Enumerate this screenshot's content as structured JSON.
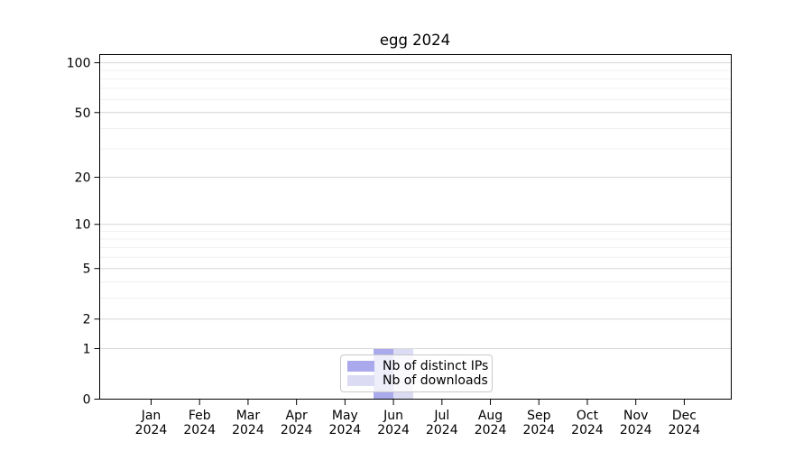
{
  "chart_data": {
    "type": "bar",
    "title": "egg 2024",
    "categories": [
      "Jan",
      "Feb",
      "Mar",
      "Apr",
      "May",
      "Jun",
      "Jul",
      "Aug",
      "Sep",
      "Oct",
      "Nov",
      "Dec"
    ],
    "category_sublabel": "2024",
    "series": [
      {
        "name": "Nb of distinct IPs",
        "color": "#a9a9ec",
        "values": [
          0,
          0,
          0,
          0,
          0,
          1,
          0,
          0,
          0,
          0,
          0,
          0
        ]
      },
      {
        "name": "Nb of downloads",
        "color": "#dbdbf4",
        "values": [
          0,
          0,
          0,
          0,
          0,
          1,
          0,
          0,
          0,
          0,
          0,
          0
        ]
      }
    ],
    "xlabel": "",
    "ylabel": "",
    "yscale": "log1p",
    "ylim": [
      0,
      112
    ],
    "yticks": [
      0,
      1,
      2,
      5,
      10,
      20,
      50,
      100
    ],
    "minor_gridlines": [
      3,
      4,
      6,
      7,
      8,
      9,
      30,
      40,
      60,
      70,
      80,
      90
    ],
    "grid": "horizontal",
    "legend": {
      "position": "lower center",
      "entries": [
        "Nb of distinct IPs",
        "Nb of downloads"
      ]
    }
  },
  "colors": {
    "background": "#ffffff",
    "bar_distinct_ips": "#a9a9ec",
    "bar_downloads": "#dbdbf4",
    "grid_major": "#d6d6d6",
    "grid_minor": "#f1f1f1",
    "axis": "#000000",
    "text": "#000000",
    "legend_border": "#c9c9c9"
  }
}
